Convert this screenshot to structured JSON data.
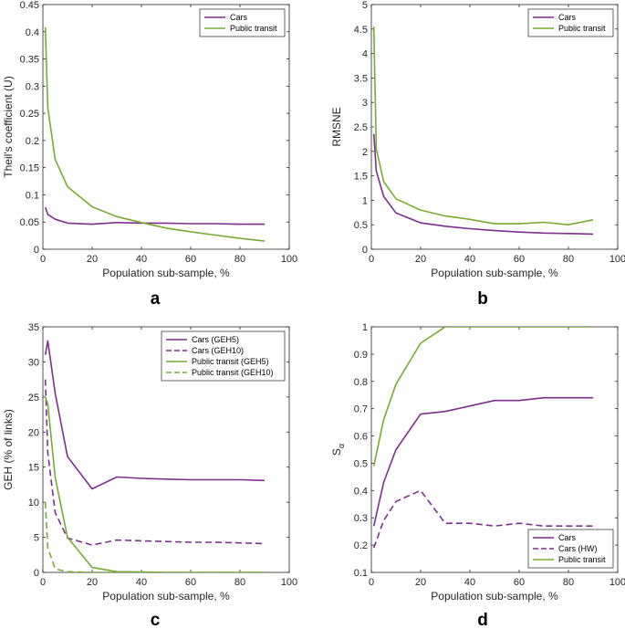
{
  "colors": {
    "cars": "#7e2f8e",
    "transit": "#77ac30"
  },
  "chart_data": [
    {
      "type": "line",
      "panel": "a",
      "xlabel": "Population sub-sample, %",
      "ylabel": "Theil's coefficient (U)",
      "xlim": [
        0,
        100
      ],
      "ylim": [
        0,
        0.45
      ],
      "xticks": [
        "0",
        "20",
        "40",
        "60",
        "80",
        "100"
      ],
      "yticks": [
        "0",
        "0.05",
        "0.1",
        "0.15",
        "0.2",
        "0.25",
        "0.3",
        "0.35",
        "0.4",
        "0.45"
      ],
      "legend_position": "top-right",
      "series": [
        {
          "name": "Cars",
          "style": "solid",
          "color_key": "cars",
          "x": [
            1,
            2,
            5,
            10,
            20,
            30,
            40,
            50,
            60,
            70,
            80,
            90
          ],
          "y": [
            0.077,
            0.064,
            0.055,
            0.048,
            0.046,
            0.049,
            0.048,
            0.048,
            0.047,
            0.047,
            0.046,
            0.046
          ]
        },
        {
          "name": "Public transit",
          "style": "solid",
          "color_key": "transit",
          "x": [
            1,
            2,
            5,
            10,
            20,
            30,
            40,
            50,
            60,
            70,
            80,
            90
          ],
          "y": [
            0.408,
            0.26,
            0.165,
            0.115,
            0.078,
            0.06,
            0.049,
            0.039,
            0.032,
            0.026,
            0.02,
            0.015
          ]
        }
      ]
    },
    {
      "type": "line",
      "panel": "b",
      "xlabel": "Population sub-sample, %",
      "ylabel": "RMSNE",
      "xlim": [
        0,
        100
      ],
      "ylim": [
        0,
        5
      ],
      "xticks": [
        "0",
        "20",
        "40",
        "60",
        "80",
        "100"
      ],
      "yticks": [
        "0",
        "0.5",
        "1",
        "1.5",
        "2",
        "2.5",
        "3",
        "3.5",
        "4",
        "4.5",
        "5"
      ],
      "legend_position": "top-right",
      "series": [
        {
          "name": "Cars",
          "style": "solid",
          "color_key": "cars",
          "x": [
            1,
            2,
            5,
            10,
            20,
            30,
            40,
            50,
            60,
            70,
            80,
            90
          ],
          "y": [
            2.35,
            1.6,
            1.08,
            0.74,
            0.54,
            0.47,
            0.42,
            0.38,
            0.35,
            0.33,
            0.32,
            0.31
          ]
        },
        {
          "name": "Public transit",
          "style": "solid",
          "color_key": "transit",
          "x": [
            1,
            2,
            5,
            10,
            20,
            30,
            40,
            50,
            60,
            70,
            80,
            90
          ],
          "y": [
            4.55,
            2.05,
            1.38,
            1.03,
            0.8,
            0.68,
            0.61,
            0.52,
            0.52,
            0.55,
            0.5,
            0.6
          ]
        }
      ]
    },
    {
      "type": "line",
      "panel": "c",
      "xlabel": "Population sub-sample, %",
      "ylabel": "GEH (% of links)",
      "xlim": [
        0,
        100
      ],
      "ylim": [
        0,
        35
      ],
      "xticks": [
        "0",
        "20",
        "40",
        "60",
        "80",
        "100"
      ],
      "yticks": [
        "0",
        "5",
        "10",
        "15",
        "20",
        "25",
        "30",
        "35"
      ],
      "legend_position": "top-right",
      "series": [
        {
          "name": "Cars (GEH5)",
          "style": "solid",
          "color_key": "cars",
          "x": [
            1,
            2,
            5,
            10,
            20,
            30,
            40,
            50,
            60,
            70,
            80,
            90
          ],
          "y": [
            31,
            33,
            25.5,
            16.5,
            11.9,
            13.6,
            13.4,
            13.3,
            13.2,
            13.2,
            13.2,
            13.1
          ]
        },
        {
          "name": "Cars (GEH10)",
          "style": "dashed",
          "color_key": "cars",
          "x": [
            1,
            2,
            5,
            10,
            20,
            30,
            40,
            50,
            60,
            70,
            80,
            90
          ],
          "y": [
            27.5,
            17,
            8.5,
            4.9,
            3.9,
            4.6,
            4.5,
            4.4,
            4.3,
            4.3,
            4.2,
            4.1
          ]
        },
        {
          "name": "Public transit (GEH5)",
          "style": "solid",
          "color_key": "transit",
          "x": [
            1,
            2,
            5,
            10,
            20,
            30,
            40,
            50,
            60,
            70,
            80,
            90
          ],
          "y": [
            25,
            24,
            13.5,
            5,
            0.7,
            0.1,
            0.05,
            0,
            0,
            0,
            0,
            0
          ]
        },
        {
          "name": "Public transit (GEH10)",
          "style": "dashed",
          "color_key": "transit",
          "x": [
            1,
            2,
            5,
            10,
            20,
            30,
            40,
            50,
            60,
            70,
            80,
            90
          ],
          "y": [
            10,
            3.5,
            0.5,
            0.1,
            0,
            0,
            0,
            0,
            0,
            0,
            0,
            0
          ]
        }
      ]
    },
    {
      "type": "line",
      "panel": "d",
      "xlabel": "Population sub-sample, %",
      "ylabel_main": "S",
      "ylabel_sub": "α",
      "xlim": [
        0,
        100
      ],
      "ylim": [
        0.1,
        1
      ],
      "xticks": [
        "0",
        "20",
        "40",
        "60",
        "80",
        "100"
      ],
      "yticks": [
        "0.1",
        "0.2",
        "0.3",
        "0.4",
        "0.5",
        "0.6",
        "0.7",
        "0.8",
        "0.9",
        "1"
      ],
      "legend_position": "bottom-right",
      "series": [
        {
          "name": "Cars",
          "style": "solid",
          "color_key": "cars",
          "x": [
            1,
            5,
            10,
            20,
            30,
            40,
            50,
            60,
            70,
            80,
            90
          ],
          "y": [
            0.27,
            0.43,
            0.55,
            0.68,
            0.69,
            0.71,
            0.73,
            0.73,
            0.74,
            0.74,
            0.74
          ]
        },
        {
          "name": "Cars (HW)",
          "style": "dashed",
          "color_key": "cars",
          "x": [
            1,
            5,
            10,
            20,
            30,
            40,
            50,
            60,
            70,
            80,
            90
          ],
          "y": [
            0.19,
            0.29,
            0.36,
            0.4,
            0.28,
            0.28,
            0.27,
            0.28,
            0.27,
            0.27,
            0.27
          ]
        },
        {
          "name": "Public transit",
          "style": "solid",
          "color_key": "transit",
          "x": [
            1,
            5,
            10,
            20,
            30,
            40,
            50,
            60,
            70,
            80,
            90
          ],
          "y": [
            0.49,
            0.66,
            0.79,
            0.94,
            1.0,
            1.0,
            1.0,
            1.0,
            1.0,
            1.0,
            1.0
          ]
        }
      ]
    }
  ]
}
